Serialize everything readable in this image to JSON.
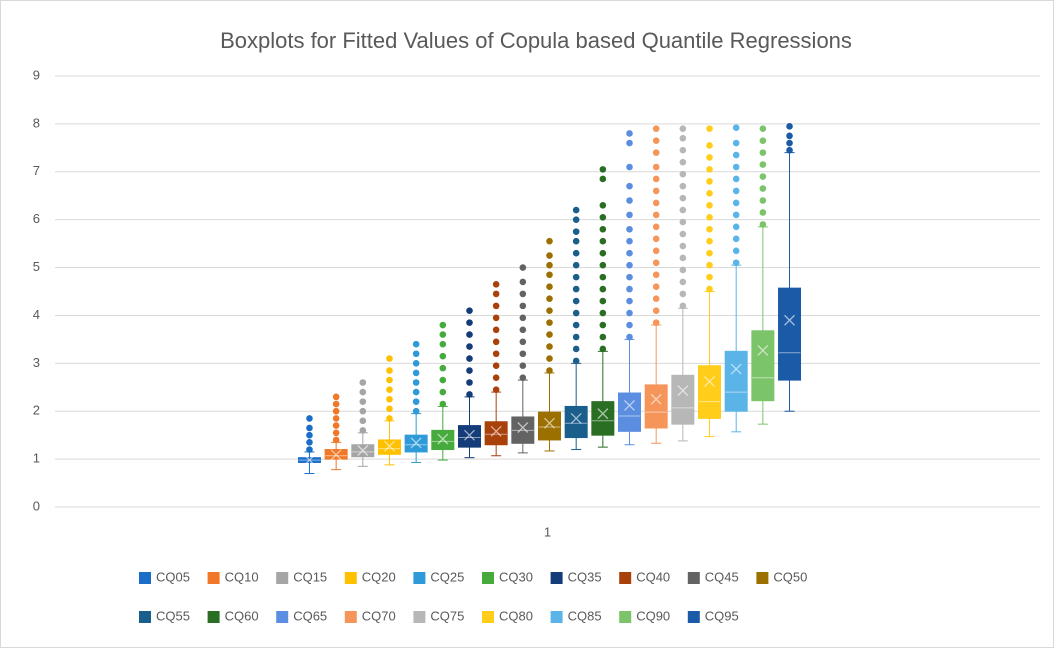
{
  "chart_data": {
    "type": "box",
    "title": "Boxplots for Fitted Values of Copula based Quantile Regressions",
    "categories": [
      "1"
    ],
    "ylim": [
      0,
      9
    ],
    "yticks": [
      0,
      1,
      2,
      3,
      4,
      5,
      6,
      7,
      8,
      9
    ],
    "grid": true,
    "legend": "bottom",
    "series": [
      {
        "name": "CQ05",
        "color": "#1a6ec8",
        "min": 0.7,
        "q1": 0.93,
        "median": 0.98,
        "q3": 1.03,
        "max": 1.15,
        "mean": 0.98,
        "outliers": [
          1.2,
          1.35,
          1.5,
          1.65,
          1.85
        ]
      },
      {
        "name": "CQ10",
        "color": "#f07828",
        "min": 0.78,
        "q1": 1.0,
        "median": 1.07,
        "q3": 1.2,
        "max": 1.35,
        "mean": 1.09,
        "outliers": [
          1.4,
          1.55,
          1.7,
          1.85,
          2.0,
          2.15,
          2.3
        ]
      },
      {
        "name": "CQ15",
        "color": "#a5a5a5",
        "min": 0.85,
        "q1": 1.05,
        "median": 1.15,
        "q3": 1.3,
        "max": 1.55,
        "mean": 1.18,
        "outliers": [
          1.6,
          1.8,
          2.0,
          2.2,
          2.4,
          2.6
        ]
      },
      {
        "name": "CQ20",
        "color": "#ffc000",
        "min": 0.88,
        "q1": 1.1,
        "median": 1.22,
        "q3": 1.4,
        "max": 1.8,
        "mean": 1.27,
        "outliers": [
          1.85,
          2.05,
          2.25,
          2.45,
          2.65,
          2.85,
          3.1
        ]
      },
      {
        "name": "CQ25",
        "color": "#2e9ad8",
        "min": 0.93,
        "q1": 1.15,
        "median": 1.3,
        "q3": 1.5,
        "max": 1.95,
        "mean": 1.34,
        "outliers": [
          2.0,
          2.2,
          2.4,
          2.6,
          2.8,
          3.0,
          3.2,
          3.4
        ]
      },
      {
        "name": "CQ30",
        "color": "#46aa3c",
        "min": 0.98,
        "q1": 1.2,
        "median": 1.37,
        "q3": 1.6,
        "max": 2.1,
        "mean": 1.42,
        "outliers": [
          2.15,
          2.4,
          2.65,
          2.9,
          3.15,
          3.4,
          3.6,
          3.8
        ]
      },
      {
        "name": "CQ35",
        "color": "#143c78",
        "min": 1.03,
        "q1": 1.25,
        "median": 1.45,
        "q3": 1.7,
        "max": 2.3,
        "mean": 1.5,
        "outliers": [
          2.35,
          2.6,
          2.85,
          3.1,
          3.35,
          3.6,
          3.85,
          4.1
        ]
      },
      {
        "name": "CQ40",
        "color": "#a8410a",
        "min": 1.07,
        "q1": 1.3,
        "median": 1.52,
        "q3": 1.78,
        "max": 2.4,
        "mean": 1.58,
        "outliers": [
          2.45,
          2.7,
          2.95,
          3.2,
          3.45,
          3.7,
          3.95,
          4.2,
          4.45,
          4.65
        ]
      },
      {
        "name": "CQ45",
        "color": "#636363",
        "min": 1.13,
        "q1": 1.33,
        "median": 1.6,
        "q3": 1.88,
        "max": 2.65,
        "mean": 1.66,
        "outliers": [
          2.7,
          2.95,
          3.2,
          3.45,
          3.7,
          3.95,
          4.2,
          4.45,
          4.7,
          5.0
        ]
      },
      {
        "name": "CQ50",
        "color": "#9c7000",
        "min": 1.17,
        "q1": 1.4,
        "median": 1.67,
        "q3": 1.98,
        "max": 2.8,
        "mean": 1.75,
        "outliers": [
          2.85,
          3.1,
          3.35,
          3.6,
          3.85,
          4.1,
          4.35,
          4.6,
          4.85,
          5.05,
          5.25,
          5.55
        ]
      },
      {
        "name": "CQ55",
        "color": "#1a5e8c",
        "min": 1.2,
        "q1": 1.45,
        "median": 1.75,
        "q3": 2.1,
        "max": 3.0,
        "mean": 1.85,
        "outliers": [
          3.05,
          3.3,
          3.55,
          3.8,
          4.05,
          4.3,
          4.55,
          4.8,
          5.05,
          5.3,
          5.55,
          5.75,
          6.0,
          6.2
        ]
      },
      {
        "name": "CQ60",
        "color": "#2a6e24",
        "min": 1.25,
        "q1": 1.5,
        "median": 1.8,
        "q3": 2.2,
        "max": 3.25,
        "mean": 1.95,
        "outliers": [
          3.3,
          3.55,
          3.8,
          4.05,
          4.3,
          4.55,
          4.8,
          5.05,
          5.3,
          5.55,
          5.8,
          6.05,
          6.3,
          6.85,
          7.05
        ]
      },
      {
        "name": "CQ65",
        "color": "#5b8ee0",
        "min": 1.3,
        "q1": 1.58,
        "median": 1.9,
        "q3": 2.38,
        "max": 3.5,
        "mean": 2.12,
        "outliers": [
          3.55,
          3.8,
          4.05,
          4.3,
          4.55,
          4.8,
          5.05,
          5.3,
          5.55,
          5.8,
          6.1,
          6.4,
          6.7,
          7.1,
          7.6,
          7.8
        ]
      },
      {
        "name": "CQ70",
        "color": "#f5955a",
        "min": 1.33,
        "q1": 1.65,
        "median": 1.98,
        "q3": 2.55,
        "max": 3.8,
        "mean": 2.25,
        "outliers": [
          3.85,
          4.1,
          4.35,
          4.6,
          4.85,
          5.1,
          5.35,
          5.6,
          5.85,
          6.1,
          6.35,
          6.6,
          6.85,
          7.1,
          7.4,
          7.65,
          7.9
        ]
      },
      {
        "name": "CQ75",
        "color": "#b7b7b7",
        "min": 1.38,
        "q1": 1.73,
        "median": 2.07,
        "q3": 2.75,
        "max": 4.15,
        "mean": 2.43,
        "outliers": [
          4.2,
          4.45,
          4.7,
          4.95,
          5.2,
          5.45,
          5.7,
          5.95,
          6.2,
          6.45,
          6.7,
          6.95,
          7.2,
          7.45,
          7.7,
          7.9
        ]
      },
      {
        "name": "CQ80",
        "color": "#ffcd1a",
        "min": 1.47,
        "q1": 1.85,
        "median": 2.2,
        "q3": 2.95,
        "max": 4.5,
        "mean": 2.62,
        "outliers": [
          4.55,
          4.8,
          5.05,
          5.3,
          5.55,
          5.8,
          6.05,
          6.3,
          6.55,
          6.8,
          7.05,
          7.3,
          7.55,
          7.9
        ]
      },
      {
        "name": "CQ85",
        "color": "#5bb4e8",
        "min": 1.57,
        "q1": 2.0,
        "median": 2.4,
        "q3": 3.25,
        "max": 5.05,
        "mean": 2.88,
        "outliers": [
          5.1,
          5.35,
          5.6,
          5.85,
          6.1,
          6.35,
          6.6,
          6.85,
          7.1,
          7.35,
          7.6,
          7.92
        ]
      },
      {
        "name": "CQ90",
        "color": "#7cc46a",
        "min": 1.73,
        "q1": 2.22,
        "median": 2.7,
        "q3": 3.68,
        "max": 5.85,
        "mean": 3.27,
        "outliers": [
          5.9,
          6.15,
          6.4,
          6.65,
          6.9,
          7.15,
          7.4,
          7.65,
          7.9
        ]
      },
      {
        "name": "CQ95",
        "color": "#1a5aa6",
        "min": 2.0,
        "q1": 2.65,
        "median": 3.22,
        "q3": 4.57,
        "max": 7.4,
        "mean": 3.9,
        "outliers": [
          7.45,
          7.6,
          7.75,
          7.95
        ]
      }
    ]
  }
}
